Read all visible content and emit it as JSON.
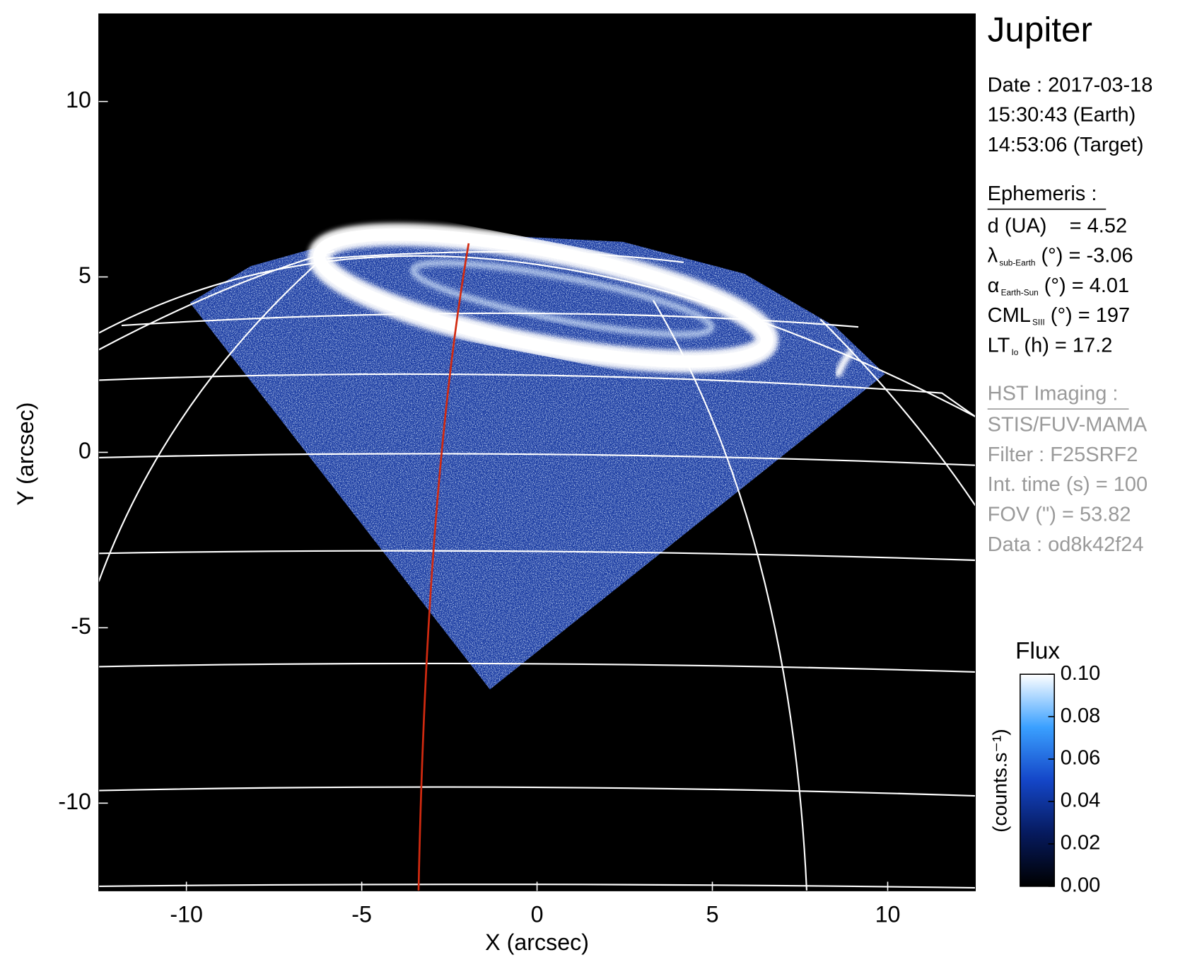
{
  "chart_data": {
    "type": "image",
    "x_label": "X (arcsec)",
    "y_label": "Y (arcsec)",
    "xlim": [
      -12.5,
      12.5
    ],
    "ylim": [
      -12.5,
      12.5
    ],
    "xticks": [
      -10,
      -5,
      0,
      5,
      10
    ],
    "yticks": [
      -10,
      -5,
      0,
      5,
      10
    ],
    "colorbar": {
      "label": "Flux",
      "unit_label": "(counts.s⁻¹)",
      "lim": [
        0,
        0.1
      ],
      "ticks": [
        {
          "value": 0,
          "label": "0.00"
        },
        {
          "value": 0.02,
          "label": "0.02"
        },
        {
          "value": 0.04,
          "label": "0.04"
        },
        {
          "value": 0.06,
          "label": "0.06"
        },
        {
          "value": 0.08,
          "label": "0.08"
        },
        {
          "value": 0.1,
          "label": "0.10"
        }
      ]
    }
  },
  "info_panel": {
    "title": "Jupiter",
    "date_lines": [
      "Date : 2017-03-18",
      "15:30:43 (Earth)",
      "14:53:06 (Target)"
    ],
    "ephemeris": {
      "heading": "Ephemeris :",
      "lines": [
        {
          "main": "d (UA)    = 4.52"
        },
        {
          "main": "λ",
          "sub": "sub-Earth",
          "rest": " (°) = -3.06"
        },
        {
          "main": "α",
          "sub": "Earth-Sun",
          "rest": " (°) = 4.01"
        },
        {
          "main": "CML",
          "sub": "SIII",
          "rest": " (°) = 197"
        },
        {
          "main": "LT",
          "sub": "Io",
          "rest": " (h) = 17.2"
        }
      ]
    },
    "imaging": {
      "heading": "HST Imaging :",
      "lines": [
        "STIS/FUV-MAMA",
        "Filter : F25SRF2",
        "Int. time (s) = 100",
        "FOV (\") = 53.82",
        "Data : od8k42f24"
      ]
    }
  }
}
